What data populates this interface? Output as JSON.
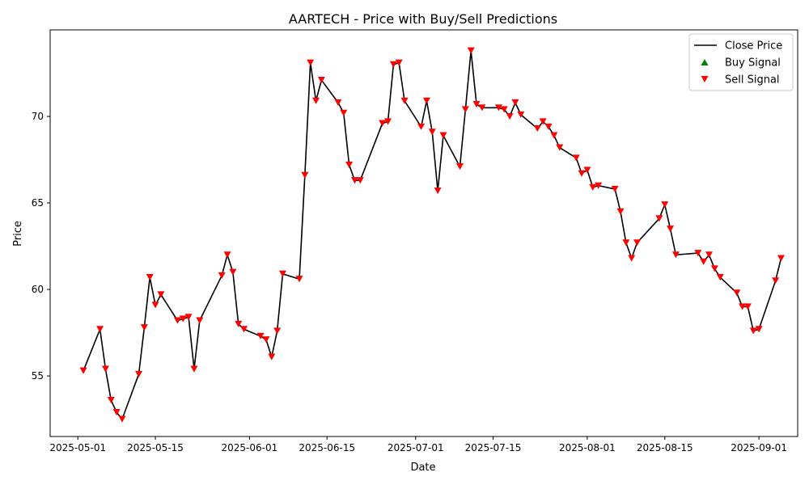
{
  "chart_data": {
    "type": "line",
    "title": "AARTECH - Price with Buy/Sell Predictions",
    "xlabel": "Date",
    "ylabel": "Price",
    "xlim": [
      "2025-04-26",
      "2025-09-08"
    ],
    "ylim": [
      51.5,
      75.0
    ],
    "xticks": [
      "2025-05-01",
      "2025-05-15",
      "2025-06-01",
      "2025-06-15",
      "2025-07-01",
      "2025-07-15",
      "2025-08-01",
      "2025-08-15",
      "2025-09-01"
    ],
    "yticks": [
      55,
      60,
      65,
      70
    ],
    "legend": {
      "position": "top-right",
      "entries": [
        {
          "label": "Close Price",
          "kind": "line",
          "color": "#000000"
        },
        {
          "label": "Buy Signal",
          "kind": "triangle-up",
          "color": "#008000"
        },
        {
          "label": "Sell Signal",
          "kind": "triangle-down",
          "color": "#ff0000"
        }
      ]
    },
    "series": [
      {
        "name": "Close Price",
        "color": "#000000",
        "points": [
          [
            "2025-05-02",
            55.3
          ],
          [
            "2025-05-05",
            57.7
          ],
          [
            "2025-05-06",
            55.4
          ],
          [
            "2025-05-07",
            53.6
          ],
          [
            "2025-05-08",
            52.9
          ],
          [
            "2025-05-09",
            52.5
          ],
          [
            "2025-05-12",
            55.1
          ],
          [
            "2025-05-13",
            57.8
          ],
          [
            "2025-05-14",
            60.7
          ],
          [
            "2025-05-15",
            59.1
          ],
          [
            "2025-05-16",
            59.7
          ],
          [
            "2025-05-19",
            58.2
          ],
          [
            "2025-05-20",
            58.3
          ],
          [
            "2025-05-21",
            58.4
          ],
          [
            "2025-05-22",
            55.4
          ],
          [
            "2025-05-23",
            58.2
          ],
          [
            "2025-05-27",
            60.8
          ],
          [
            "2025-05-28",
            62.0
          ],
          [
            "2025-05-29",
            61.0
          ],
          [
            "2025-05-30",
            58.0
          ],
          [
            "2025-05-31",
            57.7
          ],
          [
            "2025-06-03",
            57.3
          ],
          [
            "2025-06-04",
            57.1
          ],
          [
            "2025-06-05",
            56.1
          ],
          [
            "2025-06-06",
            57.6
          ],
          [
            "2025-06-07",
            60.9
          ],
          [
            "2025-06-10",
            60.6
          ],
          [
            "2025-06-11",
            66.6
          ],
          [
            "2025-06-12",
            73.1
          ],
          [
            "2025-06-13",
            70.9
          ],
          [
            "2025-06-14",
            72.1
          ],
          [
            "2025-06-17",
            70.8
          ],
          [
            "2025-06-18",
            70.2
          ],
          [
            "2025-06-19",
            67.2
          ],
          [
            "2025-06-20",
            66.3
          ],
          [
            "2025-06-21",
            66.3
          ],
          [
            "2025-06-25",
            69.6
          ],
          [
            "2025-06-26",
            69.7
          ],
          [
            "2025-06-27",
            73.0
          ],
          [
            "2025-06-28",
            73.1
          ],
          [
            "2025-06-29",
            70.9
          ],
          [
            "2025-07-02",
            69.4
          ],
          [
            "2025-07-03",
            70.9
          ],
          [
            "2025-07-04",
            69.1
          ],
          [
            "2025-07-05",
            65.7
          ],
          [
            "2025-07-06",
            68.9
          ],
          [
            "2025-07-09",
            67.1
          ],
          [
            "2025-07-10",
            70.4
          ],
          [
            "2025-07-11",
            73.8
          ],
          [
            "2025-07-12",
            70.7
          ],
          [
            "2025-07-13",
            70.5
          ],
          [
            "2025-07-16",
            70.5
          ],
          [
            "2025-07-17",
            70.4
          ],
          [
            "2025-07-18",
            70.0
          ],
          [
            "2025-07-19",
            70.8
          ],
          [
            "2025-07-20",
            70.1
          ],
          [
            "2025-07-23",
            69.3
          ],
          [
            "2025-07-24",
            69.7
          ],
          [
            "2025-07-25",
            69.4
          ],
          [
            "2025-07-26",
            68.9
          ],
          [
            "2025-07-27",
            68.2
          ],
          [
            "2025-07-30",
            67.6
          ],
          [
            "2025-07-31",
            66.7
          ],
          [
            "2025-08-01",
            66.9
          ],
          [
            "2025-08-02",
            65.9
          ],
          [
            "2025-08-03",
            66.0
          ],
          [
            "2025-08-06",
            65.8
          ],
          [
            "2025-08-07",
            64.5
          ],
          [
            "2025-08-08",
            62.7
          ],
          [
            "2025-08-09",
            61.8
          ],
          [
            "2025-08-10",
            62.7
          ],
          [
            "2025-08-14",
            64.1
          ],
          [
            "2025-08-15",
            64.9
          ],
          [
            "2025-08-16",
            63.5
          ],
          [
            "2025-08-17",
            62.0
          ],
          [
            "2025-08-21",
            62.1
          ],
          [
            "2025-08-22",
            61.6
          ],
          [
            "2025-08-23",
            62.0
          ],
          [
            "2025-08-24",
            61.2
          ],
          [
            "2025-08-25",
            60.7
          ],
          [
            "2025-08-28",
            59.8
          ],
          [
            "2025-08-29",
            59.0
          ],
          [
            "2025-08-30",
            59.0
          ],
          [
            "2025-08-31",
            57.6
          ],
          [
            "2025-09-01",
            57.7
          ],
          [
            "2025-09-04",
            60.5
          ],
          [
            "2025-09-05",
            61.8
          ]
        ]
      }
    ],
    "buy_signals": [],
    "sell_signals": [
      [
        "2025-05-02",
        55.3
      ],
      [
        "2025-05-05",
        57.7
      ],
      [
        "2025-05-06",
        55.4
      ],
      [
        "2025-05-07",
        53.6
      ],
      [
        "2025-05-08",
        52.9
      ],
      [
        "2025-05-09",
        52.5
      ],
      [
        "2025-05-12",
        55.1
      ],
      [
        "2025-05-13",
        57.8
      ],
      [
        "2025-05-14",
        60.7
      ],
      [
        "2025-05-15",
        59.1
      ],
      [
        "2025-05-16",
        59.7
      ],
      [
        "2025-05-19",
        58.2
      ],
      [
        "2025-05-20",
        58.3
      ],
      [
        "2025-05-21",
        58.4
      ],
      [
        "2025-05-22",
        55.4
      ],
      [
        "2025-05-23",
        58.2
      ],
      [
        "2025-05-27",
        60.8
      ],
      [
        "2025-05-28",
        62.0
      ],
      [
        "2025-05-29",
        61.0
      ],
      [
        "2025-05-30",
        58.0
      ],
      [
        "2025-05-31",
        57.7
      ],
      [
        "2025-06-03",
        57.3
      ],
      [
        "2025-06-04",
        57.1
      ],
      [
        "2025-06-05",
        56.1
      ],
      [
        "2025-06-06",
        57.6
      ],
      [
        "2025-06-07",
        60.9
      ],
      [
        "2025-06-10",
        60.6
      ],
      [
        "2025-06-11",
        66.6
      ],
      [
        "2025-06-12",
        73.1
      ],
      [
        "2025-06-13",
        70.9
      ],
      [
        "2025-06-14",
        72.1
      ],
      [
        "2025-06-17",
        70.8
      ],
      [
        "2025-06-18",
        70.2
      ],
      [
        "2025-06-19",
        67.2
      ],
      [
        "2025-06-20",
        66.3
      ],
      [
        "2025-06-21",
        66.3
      ],
      [
        "2025-06-25",
        69.6
      ],
      [
        "2025-06-26",
        69.7
      ],
      [
        "2025-06-27",
        73.0
      ],
      [
        "2025-06-28",
        73.1
      ],
      [
        "2025-06-29",
        70.9
      ],
      [
        "2025-07-02",
        69.4
      ],
      [
        "2025-07-03",
        70.9
      ],
      [
        "2025-07-04",
        69.1
      ],
      [
        "2025-07-05",
        65.7
      ],
      [
        "2025-07-06",
        68.9
      ],
      [
        "2025-07-09",
        67.1
      ],
      [
        "2025-07-10",
        70.4
      ],
      [
        "2025-07-11",
        73.8
      ],
      [
        "2025-07-12",
        70.7
      ],
      [
        "2025-07-13",
        70.5
      ],
      [
        "2025-07-16",
        70.5
      ],
      [
        "2025-07-17",
        70.4
      ],
      [
        "2025-07-18",
        70.0
      ],
      [
        "2025-07-19",
        70.8
      ],
      [
        "2025-07-20",
        70.1
      ],
      [
        "2025-07-23",
        69.3
      ],
      [
        "2025-07-24",
        69.7
      ],
      [
        "2025-07-25",
        69.4
      ],
      [
        "2025-07-26",
        68.9
      ],
      [
        "2025-07-27",
        68.2
      ],
      [
        "2025-07-30",
        67.6
      ],
      [
        "2025-07-31",
        66.7
      ],
      [
        "2025-08-01",
        66.9
      ],
      [
        "2025-08-02",
        65.9
      ],
      [
        "2025-08-03",
        66.0
      ],
      [
        "2025-08-06",
        65.8
      ],
      [
        "2025-08-07",
        64.5
      ],
      [
        "2025-08-08",
        62.7
      ],
      [
        "2025-08-09",
        61.8
      ],
      [
        "2025-08-10",
        62.7
      ],
      [
        "2025-08-14",
        64.1
      ],
      [
        "2025-08-15",
        64.9
      ],
      [
        "2025-08-16",
        63.5
      ],
      [
        "2025-08-17",
        62.0
      ],
      [
        "2025-08-21",
        62.1
      ],
      [
        "2025-08-22",
        61.6
      ],
      [
        "2025-08-23",
        62.0
      ],
      [
        "2025-08-24",
        61.2
      ],
      [
        "2025-08-25",
        60.7
      ],
      [
        "2025-08-28",
        59.8
      ],
      [
        "2025-08-29",
        59.0
      ],
      [
        "2025-08-30",
        59.0
      ],
      [
        "2025-08-31",
        57.6
      ],
      [
        "2025-09-01",
        57.7
      ],
      [
        "2025-09-04",
        60.5
      ],
      [
        "2025-09-05",
        61.8
      ]
    ]
  }
}
